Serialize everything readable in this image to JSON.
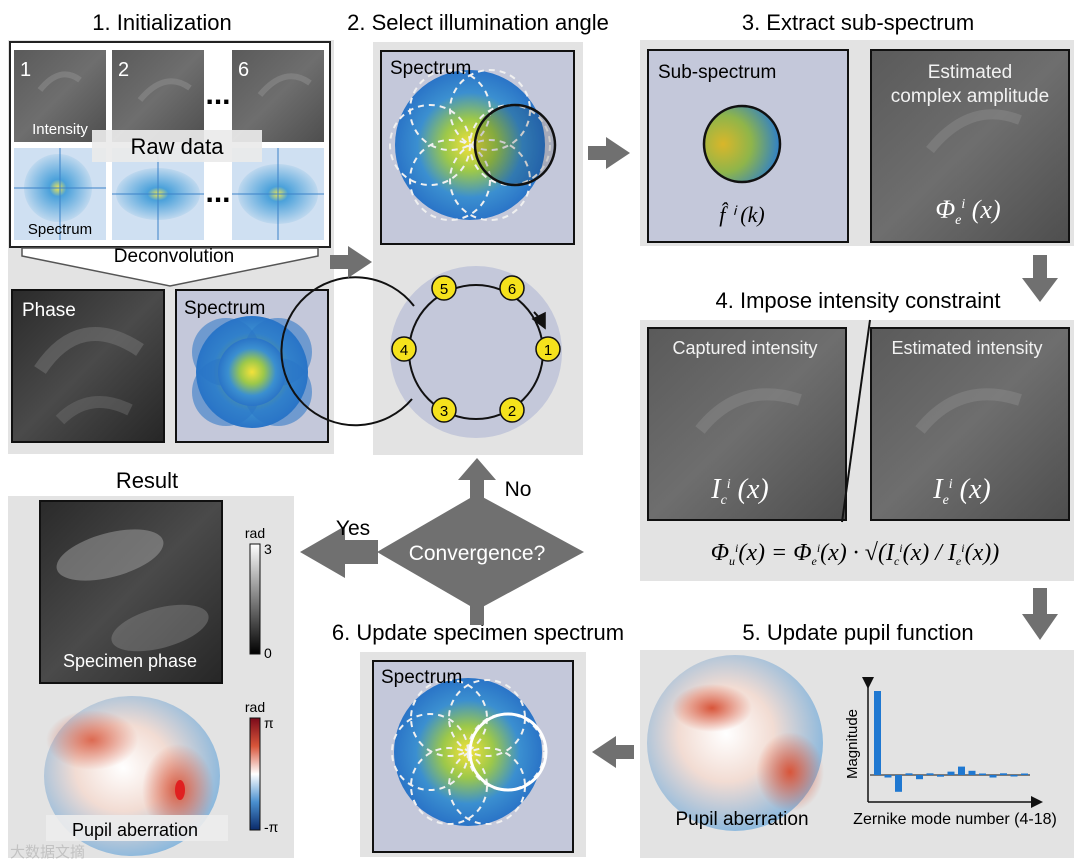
{
  "sections": {
    "init": {
      "title": "1. Initialization"
    },
    "select": {
      "title": "2. Select illumination angle"
    },
    "extract": {
      "title": "3. Extract sub-spectrum"
    },
    "impose": {
      "title": "4. Impose intensity constraint"
    },
    "pupil": {
      "title": "5. Update pupil function"
    },
    "update": {
      "title": "6. Update specimen spectrum"
    },
    "result": {
      "title": "Result"
    }
  },
  "init": {
    "frame_numbers": [
      "1",
      "2",
      "6"
    ],
    "ellipsis": "...",
    "intensity_label": "Intensity",
    "raw_data_label": "Raw data",
    "spectrum_label": "Spectrum",
    "deconvolution_label": "Deconvolution",
    "phase_label": "Phase",
    "spectrum_out_label": "Spectrum"
  },
  "select": {
    "spectrum_label": "Spectrum",
    "angle_numbers": [
      "1",
      "2",
      "3",
      "4",
      "5",
      "6"
    ]
  },
  "extract": {
    "sub_spectrum_label": "Sub-spectrum",
    "estimated_line1": "Estimated",
    "estimated_line2": "complex amplitude"
  },
  "impose": {
    "captured_label": "Captured intensity",
    "estimated_label": "Estimated intensity"
  },
  "pupil": {
    "aberration_label": "Pupil aberration",
    "y_axis_label": "Magnitude",
    "x_axis_label": "Zernike mode number (4-18)"
  },
  "update": {
    "spectrum_label": "Spectrum"
  },
  "decision": {
    "question": "Convergence?",
    "yes": "Yes",
    "no": "No"
  },
  "result": {
    "phase_label": "Specimen phase",
    "phase_unit": "rad",
    "phase_max": "3",
    "phase_min": "0",
    "pupil_label": "Pupil aberration",
    "pupil_unit": "rad",
    "pupil_max": "π",
    "pupil_min": "-π"
  },
  "watermark": "大数据文摘",
  "chart_data": {
    "type": "bar",
    "title": "",
    "xlabel": "Zernike mode number (4-18)",
    "ylabel": "Magnitude",
    "categories": [
      "4",
      "5",
      "6",
      "7",
      "8",
      "9",
      "10",
      "11",
      "12",
      "13",
      "14",
      "15",
      "16",
      "17",
      "18"
    ],
    "values": [
      1.0,
      -0.03,
      -0.2,
      0.02,
      -0.05,
      0.02,
      -0.02,
      0.04,
      0.1,
      0.05,
      0.01,
      -0.03,
      0.02,
      -0.01,
      0.01
    ]
  }
}
